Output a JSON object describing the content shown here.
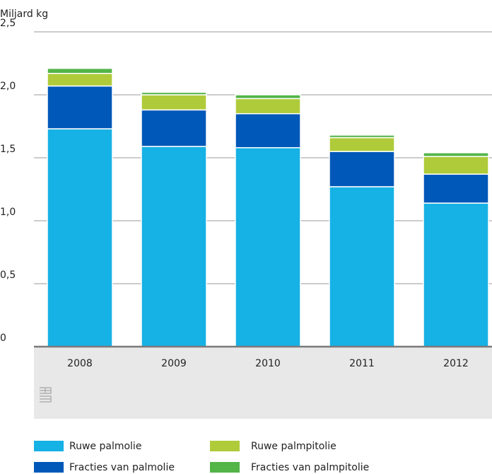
{
  "chart_data": {
    "type": "stacked_bar",
    "y_axis_label": "Miljard kg",
    "categories": [
      "2008",
      "2009",
      "2010",
      "2011",
      "2012"
    ],
    "series": [
      {
        "name": "Ruwe palmolie",
        "color": "#16b1e5",
        "values": [
          1.73,
          1.59,
          1.58,
          1.27,
          1.14
        ]
      },
      {
        "name": "Fracties van palmolie",
        "color": "#0058b8",
        "values": [
          0.34,
          0.29,
          0.27,
          0.28,
          0.23
        ]
      },
      {
        "name": "Ruwe palmpitolie",
        "color": "#afcb3a",
        "values": [
          0.1,
          0.12,
          0.12,
          0.11,
          0.14
        ]
      },
      {
        "name": "Fracties van palmpitolie",
        "color": "#53b448",
        "values": [
          0.04,
          0.02,
          0.03,
          0.02,
          0.03
        ]
      }
    ],
    "ylim": [
      0,
      2.5
    ],
    "yticks": [
      0,
      {
        "value": 0.5,
        "label": "0,5"
      },
      {
        "value": 1.0,
        "label": "1,0"
      },
      {
        "value": 1.5,
        "label": "1,5"
      },
      {
        "value": 2.0,
        "label": "2,0"
      },
      {
        "value": 2.5,
        "label": "2,5"
      }
    ],
    "grid": true
  }
}
